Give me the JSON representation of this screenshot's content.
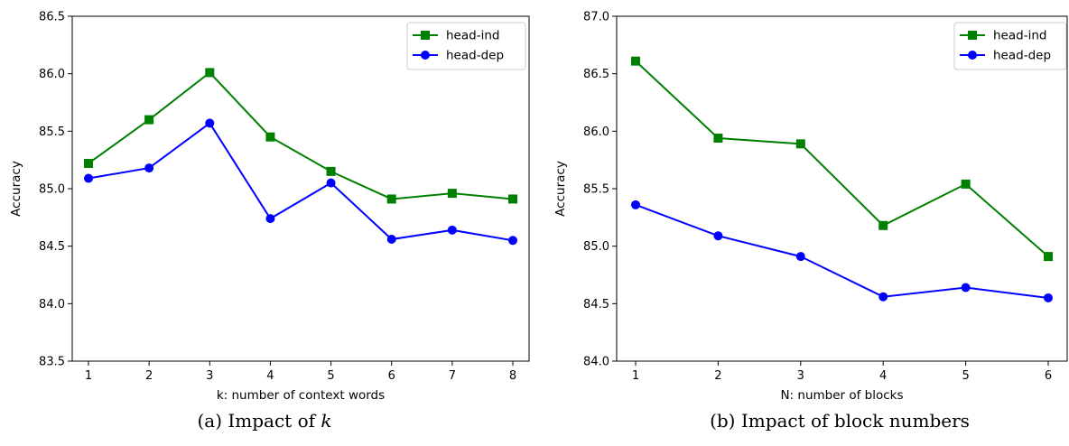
{
  "chart_data": [
    {
      "type": "line",
      "caption": "(a) Impact of",
      "caption_var": "k",
      "xlabel": "k: number of context words",
      "ylabel": "Accuracy",
      "categories": [
        1,
        2,
        3,
        4,
        5,
        6,
        7,
        8
      ],
      "ylim": [
        83.5,
        86.5
      ],
      "yticks": [
        "83.5",
        "84.0",
        "84.5",
        "85.0",
        "85.5",
        "86.0",
        "86.5"
      ],
      "xticks": [
        "1",
        "2",
        "3",
        "4",
        "5",
        "6",
        "7",
        "8"
      ],
      "legend_position": "top-right",
      "grid": false,
      "series": [
        {
          "name": "head-ind",
          "color": "#008000",
          "marker": "square",
          "values": [
            85.22,
            85.6,
            86.01,
            85.45,
            85.15,
            84.91,
            84.96,
            84.91
          ]
        },
        {
          "name": "head-dep",
          "color": "#0000ff",
          "marker": "circle",
          "values": [
            85.09,
            85.18,
            85.57,
            84.74,
            85.05,
            84.56,
            84.64,
            84.55
          ]
        }
      ]
    },
    {
      "type": "line",
      "caption": "(b) Impact of block numbers",
      "caption_var": "",
      "xlabel": "N: number of blocks",
      "ylabel": "Accuracy",
      "categories": [
        1,
        2,
        3,
        4,
        5,
        6
      ],
      "ylim": [
        84.0,
        87.0
      ],
      "yticks": [
        "84.0",
        "84.5",
        "85.0",
        "85.5",
        "86.0",
        "86.5",
        "87.0"
      ],
      "xticks": [
        "1",
        "2",
        "3",
        "4",
        "5",
        "6"
      ],
      "legend_position": "top-right",
      "grid": false,
      "series": [
        {
          "name": "head-ind",
          "color": "#008000",
          "marker": "square",
          "values": [
            86.61,
            85.94,
            85.89,
            85.18,
            85.54,
            84.91
          ]
        },
        {
          "name": "head-dep",
          "color": "#0000ff",
          "marker": "circle",
          "values": [
            85.36,
            85.09,
            84.91,
            84.56,
            84.64,
            84.55
          ]
        }
      ]
    }
  ]
}
